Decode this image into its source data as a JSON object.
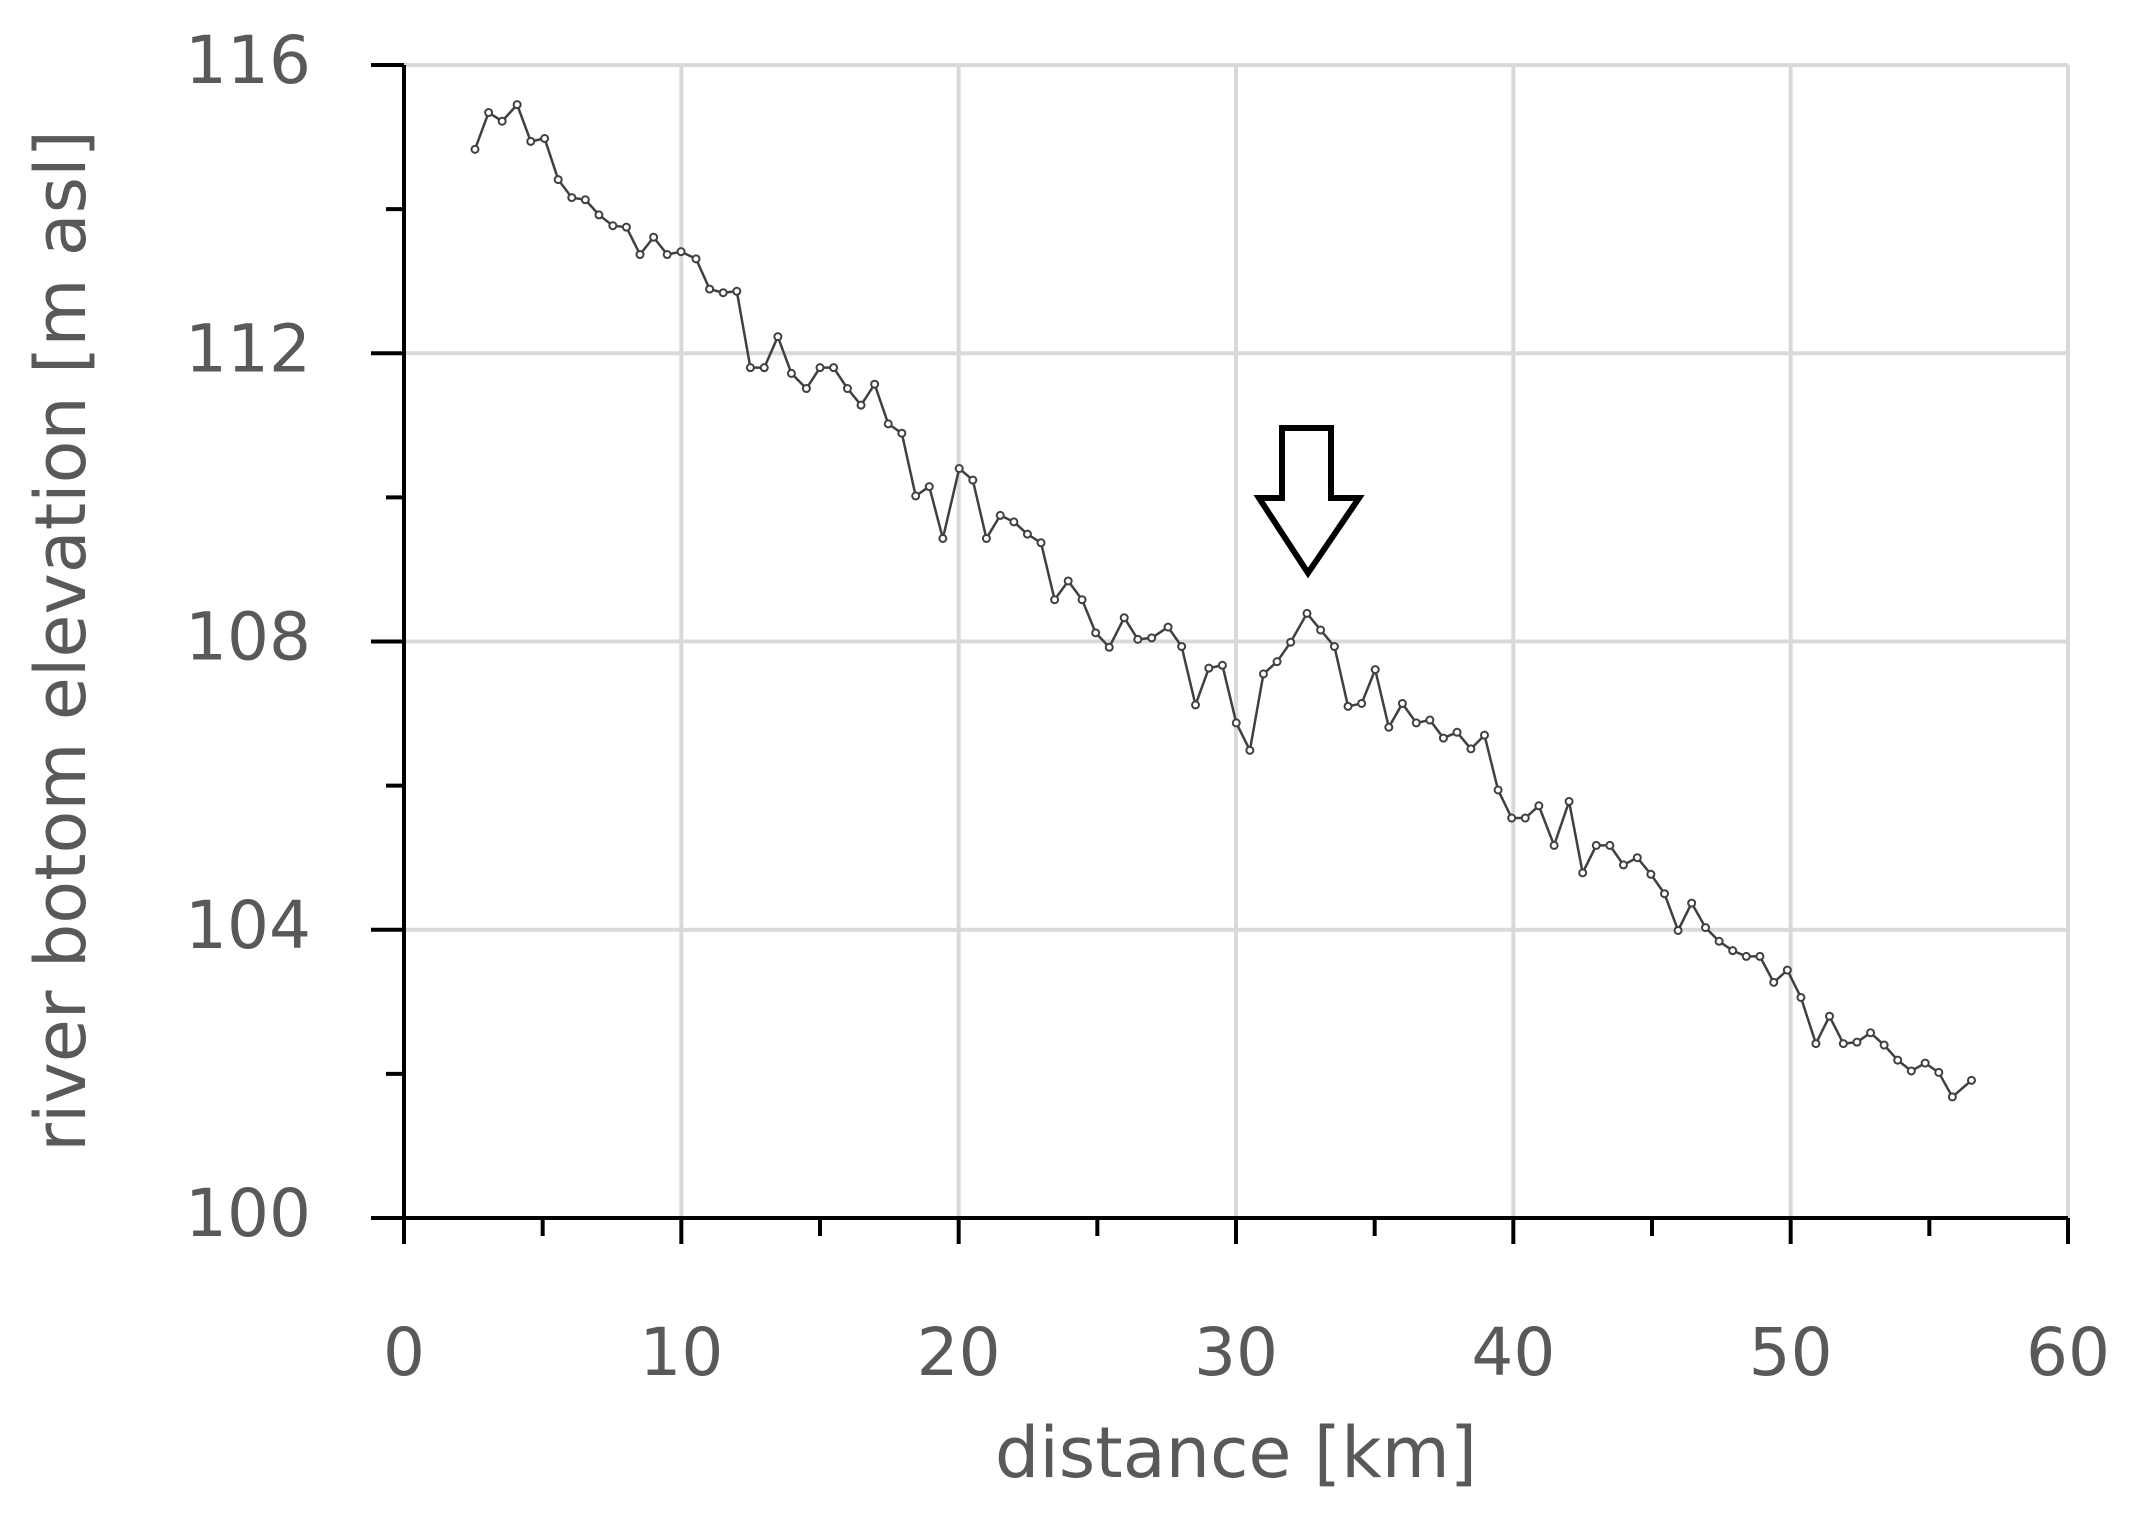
{
  "chart_data": {
    "type": "line",
    "xlabel": "distance [km]",
    "ylabel": "river botom elevation [m asl]",
    "x": [
      2.56,
      3.05,
      3.54,
      4.08,
      4.57,
      5.07,
      5.56,
      6.05,
      6.54,
      7.03,
      7.53,
      8.02,
      8.51,
      9.0,
      9.49,
      9.99,
      10.53,
      11.02,
      11.51,
      12.0,
      12.49,
      12.99,
      13.48,
      13.97,
      14.51,
      15.0,
      15.49,
      15.99,
      16.48,
      16.97,
      17.46,
      17.95,
      18.45,
      18.94,
      19.43,
      20.02,
      20.51,
      21.0,
      21.5,
      21.99,
      22.48,
      22.97,
      23.46,
      23.95,
      24.45,
      24.94,
      25.43,
      25.97,
      26.46,
      26.96,
      27.55,
      28.04,
      28.54,
      29.02,
      29.51,
      30.01,
      30.5,
      30.99,
      31.48,
      31.97,
      32.56,
      33.05,
      33.55,
      34.04,
      34.53,
      35.02,
      35.51,
      36.0,
      36.5,
      36.99,
      37.48,
      37.97,
      38.47,
      38.96,
      39.45,
      39.94,
      40.43,
      40.92,
      41.47,
      42.01,
      42.5,
      42.99,
      43.48,
      43.97,
      44.47,
      44.96,
      45.45,
      45.94,
      46.43,
      46.93,
      47.42,
      47.91,
      48.4,
      48.89,
      49.39,
      49.88,
      50.37,
      50.91,
      51.4,
      51.9,
      52.39,
      52.88,
      53.37,
      53.86,
      54.35,
      54.85,
      55.34,
      55.83,
      56.52
    ],
    "values": [
      114.83,
      115.34,
      115.22,
      115.45,
      114.94,
      114.98,
      114.41,
      114.16,
      114.13,
      113.92,
      113.77,
      113.75,
      113.37,
      113.61,
      113.37,
      113.41,
      113.31,
      112.89,
      112.84,
      112.86,
      111.8,
      111.8,
      112.23,
      111.72,
      111.51,
      111.8,
      111.8,
      111.51,
      111.28,
      111.57,
      111.02,
      110.89,
      110.02,
      110.15,
      109.43,
      110.4,
      110.24,
      109.43,
      109.75,
      109.66,
      109.49,
      109.37,
      108.58,
      108.84,
      108.58,
      108.12,
      107.92,
      108.33,
      108.03,
      108.05,
      108.2,
      107.93,
      107.12,
      107.63,
      107.67,
      106.87,
      106.49,
      107.55,
      107.72,
      107.99,
      108.39,
      108.16,
      107.93,
      107.1,
      107.14,
      107.61,
      106.81,
      107.14,
      106.87,
      106.91,
      106.66,
      106.74,
      106.51,
      106.7,
      105.94,
      105.55,
      105.55,
      105.72,
      105.17,
      105.78,
      104.79,
      105.17,
      105.17,
      104.9,
      105.0,
      104.77,
      104.5,
      103.99,
      104.37,
      104.03,
      103.84,
      103.71,
      103.63,
      103.63,
      103.27,
      103.44,
      103.06,
      102.42,
      102.8,
      102.42,
      102.44,
      102.57,
      102.4,
      102.19,
      102.04,
      102.15,
      102.02,
      101.68,
      101.91
    ],
    "color": "#404040",
    "xlim": [
      0,
      60
    ],
    "ylim": [
      100,
      116
    ],
    "xticks": [
      0,
      10,
      20,
      30,
      40,
      50,
      60
    ],
    "yticks": [
      100,
      104,
      108,
      112,
      116
    ],
    "xticks_minor": [
      5,
      15,
      25,
      35,
      45,
      55
    ],
    "yticks_minor": [
      102,
      106,
      110,
      114
    ],
    "grid": true,
    "markers": true
  }
}
